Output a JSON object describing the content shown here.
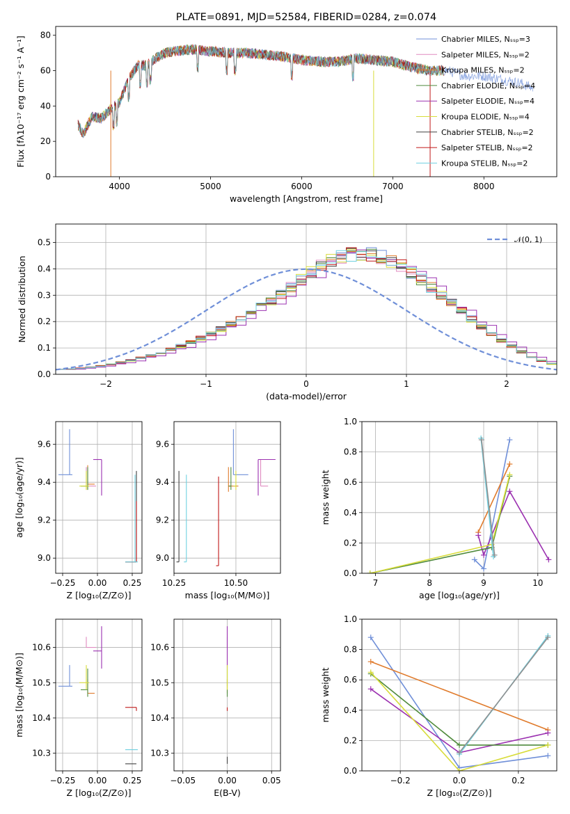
{
  "figure": {
    "title": "PLATE=0891, MJD=52584, FIBERID=0284, z=0.074"
  },
  "chart_data": [
    {
      "type": "line",
      "id": "spectrum",
      "title": "PLATE=0891, MJD=52584, FIBERID=0284, z=0.074",
      "xlabel": "wavelength [Angstrom, rest frame]",
      "ylabel": "Flux [fλ10⁻¹⁷ erg cm⁻² s⁻¹ A⁻¹]",
      "xlim": [
        3300,
        8800
      ],
      "ylim": [
        0,
        85
      ],
      "xticks": [
        4000,
        5000,
        6000,
        7000,
        8000
      ],
      "yticks": [
        0,
        20,
        40,
        60,
        80
      ],
      "grid": false,
      "legend": "upper right",
      "series": [
        {
          "name": "Chabrier MILES, Nₛₛₚ=3",
          "color": "#6f8fd8"
        },
        {
          "name": "Salpeter MILES, Nₛₛₚ=2",
          "color": "#e08ac0"
        },
        {
          "name": "Kroupa MILES, Nₛₛₚ=2",
          "color": "#e07b2c"
        },
        {
          "name": "Chabrier ELODIE, Nₛₛₚ=4",
          "color": "#4f8a3c"
        },
        {
          "name": "Salpeter ELODIE, Nₛₛₚ=4",
          "color": "#9b30b0"
        },
        {
          "name": "Kroupa ELODIE, Nₛₛₚ=4",
          "color": "#d8dc3a"
        },
        {
          "name": "Chabrier STELIB, Nₛₛₚ=2",
          "color": "#404040"
        },
        {
          "name": "Salpeter STELIB, Nₛₛₚ=2",
          "color": "#c01818"
        },
        {
          "name": "Kroupa STELIB, Nₛₛₚ=2",
          "color": "#6fd0e0"
        }
      ],
      "continuum": {
        "x": [
          3540,
          3600,
          3700,
          3800,
          3900,
          4000,
          4100,
          4200,
          4300,
          4400,
          4500,
          4600,
          4800,
          5000,
          5200,
          5400,
          5600,
          5800,
          6000,
          6200,
          6400,
          6600,
          6800,
          7000,
          7200,
          7400,
          7600,
          7800,
          8000,
          8200,
          8400,
          8540
        ],
        "y": [
          30,
          24,
          34,
          33,
          38,
          42,
          55,
          63,
          63,
          67,
          70,
          71,
          72,
          71,
          70,
          70,
          69,
          68,
          66,
          65,
          65,
          67,
          66,
          65,
          62,
          60,
          60,
          57,
          57,
          55,
          53,
          50
        ]
      }
    },
    {
      "type": "histogram",
      "id": "residuals",
      "xlabel": "(data-model)/error",
      "ylabel": "Normed distribution",
      "xlim": [
        -2.5,
        2.5
      ],
      "ylim": [
        0,
        0.57
      ],
      "xticks": [
        -2,
        -1,
        0,
        1,
        2
      ],
      "yticks": [
        0.0,
        0.1,
        0.2,
        0.3,
        0.4,
        0.5
      ],
      "grid": true,
      "legend": "upper right",
      "reference": {
        "name": "𝒩(0, 1)",
        "color": "#6f8fd8",
        "style": "dashed"
      },
      "bins": {
        "start": -2.5,
        "width": 0.1,
        "count": 50
      },
      "base_values": [
        0.02,
        0.02,
        0.023,
        0.027,
        0.032,
        0.038,
        0.045,
        0.053,
        0.062,
        0.072,
        0.082,
        0.094,
        0.108,
        0.122,
        0.138,
        0.155,
        0.172,
        0.19,
        0.21,
        0.232,
        0.255,
        0.28,
        0.305,
        0.332,
        0.36,
        0.388,
        0.412,
        0.43,
        0.445,
        0.455,
        0.46,
        0.455,
        0.445,
        0.43,
        0.41,
        0.385,
        0.36,
        0.33,
        0.3,
        0.27,
        0.24,
        0.21,
        0.18,
        0.152,
        0.128,
        0.105,
        0.085,
        0.067,
        0.052,
        0.04
      ]
    },
    {
      "type": "errorbar",
      "id": "age-vs-Z",
      "xlabel": "Z [log₁₀(Z/Z⊙)]",
      "ylabel": "age  [log₁₀(age/yr)]",
      "xlim": [
        -0.3,
        0.32
      ],
      "ylim": [
        8.92,
        9.72
      ],
      "xticks": [
        -0.25,
        0.0,
        0.25
      ],
      "yticks": [
        9.0,
        9.2,
        9.4,
        9.6
      ],
      "points": [
        {
          "x": -0.2,
          "xerr": [
            0.08,
            0.02
          ],
          "y": 9.44,
          "yerr": [
            0.0,
            0.24
          ],
          "color": "#6f8fd8"
        },
        {
          "x": -0.07,
          "xerr": [
            0.0,
            0.05
          ],
          "y": 9.39,
          "yerr": [
            0.03,
            0.1
          ],
          "color": "#e07b2c"
        },
        {
          "x": -0.08,
          "xerr": [
            0.0,
            0.07
          ],
          "y": 9.38,
          "yerr": [
            0.02,
            0.1
          ],
          "color": "#e08ac0"
        },
        {
          "x": -0.07,
          "xerr": [
            0.05,
            0.0
          ],
          "y": 9.38,
          "yerr": [
            0.02,
            0.1
          ],
          "color": "#4f8a3c"
        },
        {
          "x": 0.03,
          "xerr": [
            0.06,
            0.0
          ],
          "y": 9.52,
          "yerr": [
            0.19,
            0.0
          ],
          "color": "#9b30b0"
        },
        {
          "x": -0.08,
          "xerr": [
            0.05,
            0.02
          ],
          "y": 9.38,
          "yerr": [
            0.02,
            0.08
          ],
          "color": "#d8dc3a"
        },
        {
          "x": 0.28,
          "xerr": [
            0.08,
            0.0
          ],
          "y": 8.98,
          "yerr": [
            0.0,
            0.48
          ],
          "color": "#404040"
        },
        {
          "x": 0.28,
          "xerr": [
            0.08,
            0.0
          ],
          "y": 8.98,
          "yerr": [
            0.0,
            0.32
          ],
          "color": "#c01818"
        },
        {
          "x": 0.27,
          "xerr": [
            0.07,
            0.02
          ],
          "y": 8.98,
          "yerr": [
            0.0,
            0.46
          ],
          "color": "#6fd0e0"
        }
      ]
    },
    {
      "type": "errorbar",
      "id": "age-vs-mass",
      "xlabel": "mass [log₁₀(M/M⊙)]",
      "ylabel": "",
      "xlim": [
        10.25,
        10.68
      ],
      "ylim": [
        8.92,
        9.72
      ],
      "xticks": [
        10.25,
        10.5
      ],
      "yticks": [
        9.0,
        9.2,
        9.4,
        9.6
      ],
      "points": [
        {
          "x": 10.49,
          "xerr": [
            0.0,
            0.06
          ],
          "y": 9.44,
          "yerr": [
            0.0,
            0.24
          ],
          "color": "#6f8fd8"
        },
        {
          "x": 10.47,
          "xerr": [
            0.0,
            0.04
          ],
          "y": 9.38,
          "yerr": [
            0.03,
            0.1
          ],
          "color": "#e07b2c"
        },
        {
          "x": 10.6,
          "xerr": [
            0.0,
            0.03
          ],
          "y": 9.38,
          "yerr": [
            0.0,
            0.14
          ],
          "color": "#e08ac0"
        },
        {
          "x": 10.48,
          "xerr": [
            0.01,
            0.0
          ],
          "y": 9.38,
          "yerr": [
            0.02,
            0.1
          ],
          "color": "#4f8a3c"
        },
        {
          "x": 10.59,
          "xerr": [
            0.0,
            0.07
          ],
          "y": 9.52,
          "yerr": [
            0.19,
            0.0
          ],
          "color": "#9b30b0"
        },
        {
          "x": 10.5,
          "xerr": [
            0.01,
            0.0
          ],
          "y": 9.38,
          "yerr": [
            0.02,
            0.08
          ],
          "color": "#d8dc3a"
        },
        {
          "x": 10.27,
          "xerr": [
            0.01,
            0.0
          ],
          "y": 8.98,
          "yerr": [
            0.0,
            0.48
          ],
          "color": "#404040"
        },
        {
          "x": 10.43,
          "xerr": [
            0.01,
            0.0
          ],
          "y": 8.96,
          "yerr": [
            0.0,
            0.47
          ],
          "color": "#c01818"
        },
        {
          "x": 10.3,
          "xerr": [
            0.01,
            0.0
          ],
          "y": 8.98,
          "yerr": [
            0.0,
            0.46
          ],
          "color": "#6fd0e0"
        }
      ]
    },
    {
      "type": "line",
      "id": "weight-vs-age",
      "xlabel": "age  [log₁₀(age/yr)]",
      "ylabel": "mass weight",
      "xlim": [
        6.75,
        10.35
      ],
      "ylim": [
        0.0,
        1.0
      ],
      "xticks": [
        7,
        8,
        9,
        10
      ],
      "yticks": [
        0.0,
        0.2,
        0.4,
        0.6,
        0.8,
        1.0
      ],
      "grid": true,
      "series": [
        {
          "color": "#6f8fd8",
          "x": [
            8.83,
            9.0,
            9.48
          ],
          "y": [
            0.09,
            0.03,
            0.88
          ]
        },
        {
          "color": "#e07b2c",
          "x": [
            8.9,
            9.48
          ],
          "y": [
            0.27,
            0.72
          ]
        },
        {
          "color": "#9b30b0",
          "x": [
            8.9,
            9.0,
            9.48,
            10.2
          ],
          "y": [
            0.25,
            0.12,
            0.54,
            0.09
          ]
        },
        {
          "color": "#4f8a3c",
          "x": [
            6.9,
            9.15,
            9.48
          ],
          "y": [
            0.0,
            0.17,
            0.64
          ]
        },
        {
          "color": "#d8dc3a",
          "x": [
            6.9,
            9.15,
            9.48
          ],
          "y": [
            0.0,
            0.19,
            0.65
          ]
        },
        {
          "color": "#6fd0e0",
          "x": [
            8.95,
            9.18
          ],
          "y": [
            0.89,
            0.11
          ]
        },
        {
          "color": "#909090",
          "x": [
            8.96,
            9.2
          ],
          "y": [
            0.88,
            0.12
          ]
        }
      ]
    },
    {
      "type": "errorbar",
      "id": "mass-vs-Z",
      "xlabel": "Z [log₁₀(Z/Z⊙)]",
      "ylabel": "mass [log₁₀(M/M⊙)]",
      "xlim": [
        -0.3,
        0.32
      ],
      "ylim": [
        10.25,
        10.68
      ],
      "xticks": [
        -0.25,
        0.0,
        0.25
      ],
      "yticks": [
        10.3,
        10.4,
        10.5,
        10.6
      ],
      "points": [
        {
          "x": -0.2,
          "xerr": [
            0.08,
            0.02
          ],
          "y": 10.49,
          "yerr": [
            0.0,
            0.06
          ],
          "color": "#6f8fd8"
        },
        {
          "x": -0.07,
          "xerr": [
            0.0,
            0.05
          ],
          "y": 10.47,
          "yerr": [
            0.0,
            0.04
          ],
          "color": "#e07b2c"
        },
        {
          "x": -0.08,
          "xerr": [
            0.0,
            0.07
          ],
          "y": 10.6,
          "yerr": [
            0.0,
            0.03
          ],
          "color": "#e08ac0"
        },
        {
          "x": -0.07,
          "xerr": [
            0.05,
            0.0
          ],
          "y": 10.48,
          "yerr": [
            0.02,
            0.06
          ],
          "color": "#4f8a3c"
        },
        {
          "x": 0.03,
          "xerr": [
            0.06,
            0.0
          ],
          "y": 10.59,
          "yerr": [
            0.05,
            0.07
          ],
          "color": "#9b30b0"
        },
        {
          "x": -0.08,
          "xerr": [
            0.05,
            0.02
          ],
          "y": 10.5,
          "yerr": [
            0.02,
            0.05
          ],
          "color": "#d8dc3a"
        },
        {
          "x": 0.28,
          "xerr": [
            0.08,
            0.0
          ],
          "y": 10.27,
          "yerr": [
            0.0,
            0.0
          ],
          "color": "#404040"
        },
        {
          "x": 0.28,
          "xerr": [
            0.08,
            0.0
          ],
          "y": 10.43,
          "yerr": [
            0.01,
            0.0
          ],
          "color": "#c01818"
        },
        {
          "x": 0.27,
          "xerr": [
            0.07,
            0.02
          ],
          "y": 10.31,
          "yerr": [
            0.0,
            0.0
          ],
          "color": "#6fd0e0"
        }
      ]
    },
    {
      "type": "errorbar",
      "id": "mass-vs-ebv",
      "xlabel": "E(B-V)",
      "ylabel": "",
      "xlim": [
        -0.06,
        0.06
      ],
      "ylim": [
        10.25,
        10.68
      ],
      "xticks": [
        -0.05,
        0.0,
        0.05
      ],
      "yticks": [
        10.3,
        10.4,
        10.5,
        10.6
      ],
      "points": [
        {
          "x": 0.0,
          "xerr": [
            0,
            0
          ],
          "y": 10.49,
          "yerr": [
            0.0,
            0.06
          ],
          "color": "#6f8fd8"
        },
        {
          "x": 0.0,
          "xerr": [
            0,
            0
          ],
          "y": 10.47,
          "yerr": [
            0.0,
            0.04
          ],
          "color": "#e07b2c"
        },
        {
          "x": 0.0,
          "xerr": [
            0,
            0
          ],
          "y": 10.6,
          "yerr": [
            0.0,
            0.03
          ],
          "color": "#e08ac0"
        },
        {
          "x": 0.0,
          "xerr": [
            0,
            0
          ],
          "y": 10.48,
          "yerr": [
            0.02,
            0.06
          ],
          "color": "#4f8a3c"
        },
        {
          "x": 0.0,
          "xerr": [
            0,
            0
          ],
          "y": 10.59,
          "yerr": [
            0.05,
            0.07
          ],
          "color": "#9b30b0"
        },
        {
          "x": 0.0,
          "xerr": [
            0,
            0
          ],
          "y": 10.5,
          "yerr": [
            0.02,
            0.05
          ],
          "color": "#d8dc3a"
        },
        {
          "x": 0.0,
          "xerr": [
            0,
            0
          ],
          "y": 10.27,
          "yerr": [
            0.0,
            0.02
          ],
          "color": "#404040"
        },
        {
          "x": 0.0,
          "xerr": [
            0,
            0
          ],
          "y": 10.43,
          "yerr": [
            0.01,
            0.0
          ],
          "color": "#c01818"
        },
        {
          "x": 0.0,
          "xerr": [
            0,
            0
          ],
          "y": 10.31,
          "yerr": [
            0.0,
            0.0
          ],
          "color": "#6fd0e0"
        }
      ]
    },
    {
      "type": "line",
      "id": "weight-vs-Z",
      "xlabel": "Z [log₁₀(Z/Z⊙)]",
      "ylabel": "mass weight",
      "xlim": [
        -0.33,
        0.33
      ],
      "ylim": [
        0.0,
        1.0
      ],
      "xticks": [
        -0.2,
        0.0,
        0.2
      ],
      "yticks": [
        0.0,
        0.2,
        0.4,
        0.6,
        0.8,
        1.0
      ],
      "grid": true,
      "series": [
        {
          "color": "#6f8fd8",
          "x": [
            -0.3,
            0.0,
            0.3
          ],
          "y": [
            0.88,
            0.02,
            0.1
          ]
        },
        {
          "color": "#e07b2c",
          "x": [
            -0.3,
            0.3
          ],
          "y": [
            0.72,
            0.27
          ]
        },
        {
          "color": "#9b30b0",
          "x": [
            -0.3,
            0.0,
            0.3
          ],
          "y": [
            0.54,
            0.12,
            0.25
          ]
        },
        {
          "color": "#4f8a3c",
          "x": [
            -0.3,
            0.0,
            0.3
          ],
          "y": [
            0.64,
            0.17,
            0.17
          ]
        },
        {
          "color": "#d8dc3a",
          "x": [
            -0.3,
            0.0,
            0.3
          ],
          "y": [
            0.65,
            0.0,
            0.17
          ]
        },
        {
          "color": "#6fd0e0",
          "x": [
            0.0,
            0.3
          ],
          "y": [
            0.11,
            0.89
          ]
        },
        {
          "color": "#909090",
          "x": [
            0.0,
            0.3
          ],
          "y": [
            0.12,
            0.88
          ]
        }
      ]
    }
  ]
}
